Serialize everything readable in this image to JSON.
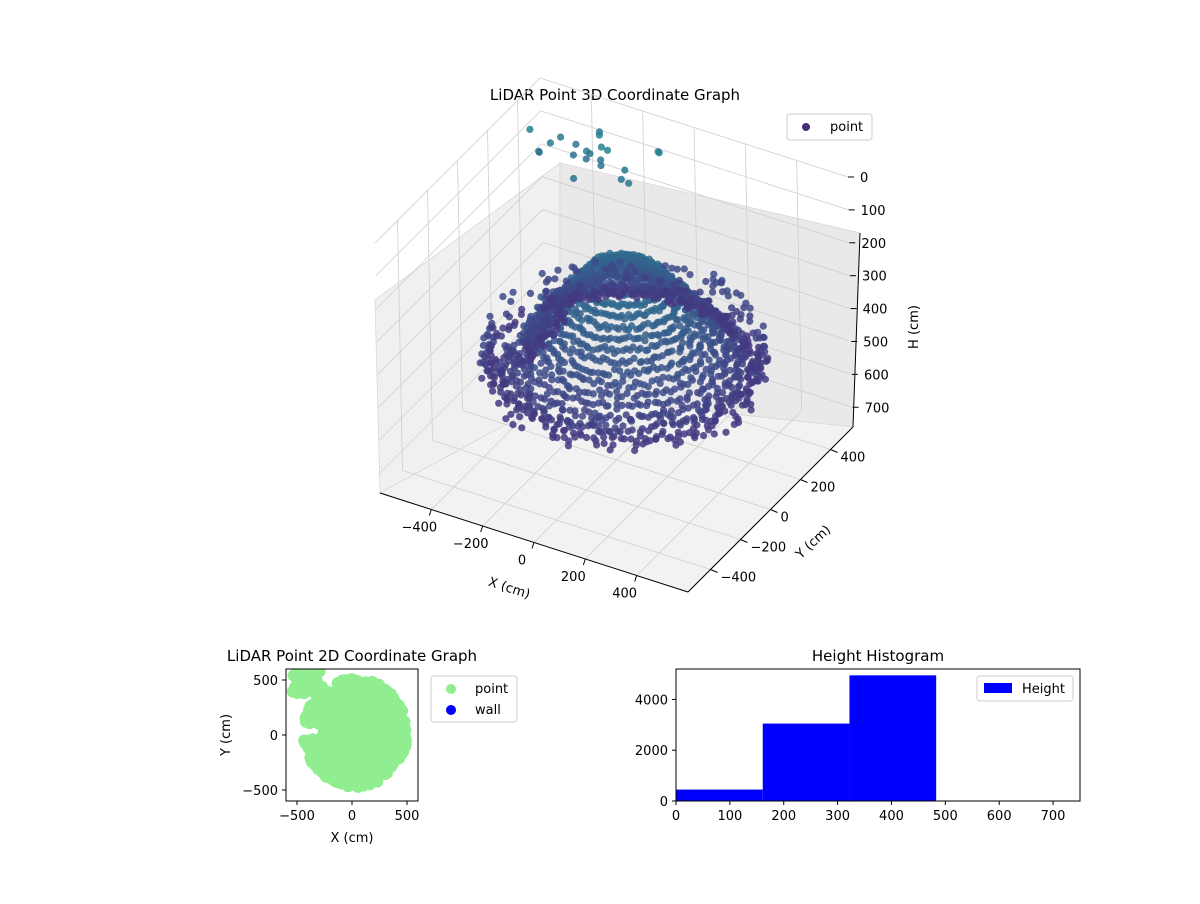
{
  "figure": {
    "background": "#ffffff"
  },
  "chart_data": [
    {
      "type": "scatter",
      "subtype": "3d",
      "title": "LiDAR Point 3D Coordinate Graph",
      "xlabel": "X (cm)",
      "ylabel": "Y (cm)",
      "zlabel": "H (cm)",
      "xlim": [
        -600,
        600
      ],
      "ylim": [
        -550,
        550
      ],
      "zlim": [
        0,
        760
      ],
      "z_inverted": true,
      "xticks": [
        -400,
        -200,
        0,
        200,
        400
      ],
      "yticks": [
        -400,
        -200,
        0,
        200,
        400
      ],
      "zticks": [
        0,
        100,
        200,
        300,
        400,
        500,
        600,
        700
      ],
      "grid": true,
      "legend": {
        "placement": "top-right",
        "entries": [
          {
            "name": "point",
            "color": "#472c7a"
          }
        ]
      },
      "colormap": "viridis",
      "series": [
        {
          "name": "point"
        }
      ]
    },
    {
      "type": "scatter",
      "title": "LiDAR Point 2D Coordinate Graph",
      "xlabel": "X (cm)",
      "ylabel": "Y (cm)",
      "xlim": [
        -600,
        600
      ],
      "ylim": [
        -600,
        600
      ],
      "xticks": [
        -500,
        0,
        500
      ],
      "yticks": [
        -500,
        0,
        500
      ],
      "legend": {
        "placement": "outside-right",
        "entries": [
          {
            "name": "point",
            "color": "#90ee90"
          },
          {
            "name": "wall",
            "color": "#0000ff"
          }
        ]
      },
      "series": [
        {
          "name": "point",
          "color": "#90ee90"
        },
        {
          "name": "wall",
          "color": "#0000ff"
        }
      ]
    },
    {
      "type": "bar",
      "subtype": "histogram",
      "title": "Height Histogram",
      "xlim": [
        0,
        750
      ],
      "ylim": [
        0,
        5200
      ],
      "xticks": [
        0,
        100,
        200,
        300,
        400,
        500,
        600,
        700
      ],
      "yticks": [
        0,
        2000,
        4000
      ],
      "legend": {
        "placement": "top-right",
        "entries": [
          {
            "name": "Height",
            "color": "#0000ff"
          }
        ]
      },
      "series": [
        {
          "name": "Height",
          "color": "#0000ff",
          "bins": [
            {
              "start": 0,
              "end": 161,
              "value": 450
            },
            {
              "start": 161,
              "end": 322,
              "value": 3050
            },
            {
              "start": 322,
              "end": 483,
              "value": 4950
            },
            {
              "start": 483,
              "end": 644,
              "value": 0
            },
            {
              "start": 644,
              "end": 750,
              "value": 0
            }
          ]
        }
      ]
    }
  ]
}
